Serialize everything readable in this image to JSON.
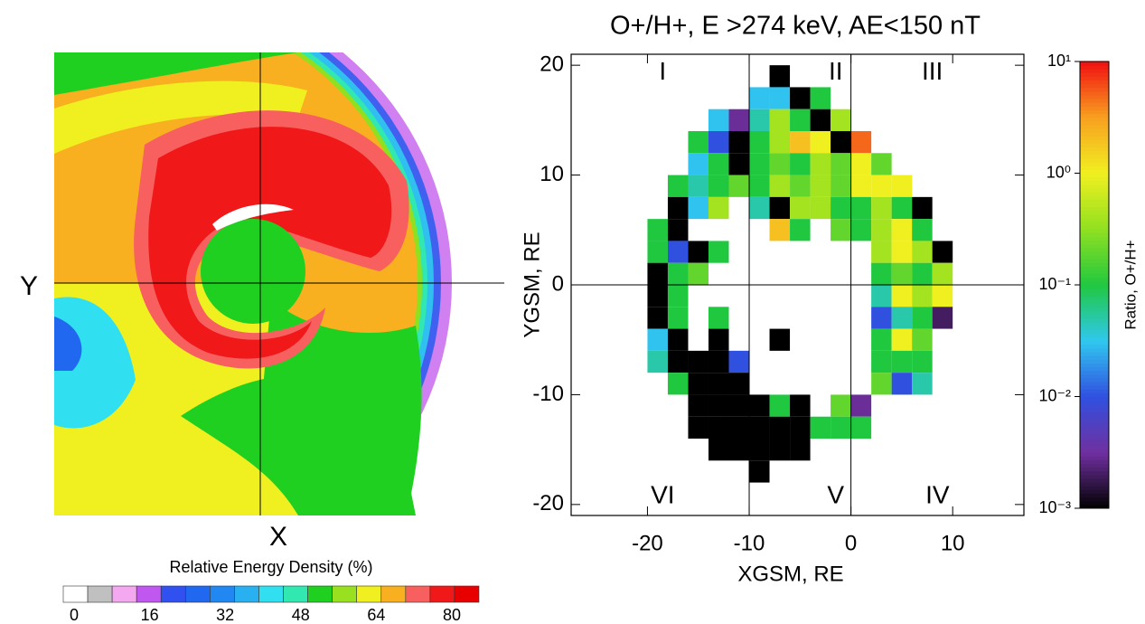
{
  "chart_data": [
    {
      "type": "contour-map",
      "x_label": "X",
      "y_label": "Y",
      "colorbar": {
        "title": "Relative Energy Density (%)",
        "colors": [
          "#ffffff",
          "#c0c0c0",
          "#f4a8f0",
          "#c058f0",
          "#3050f0",
          "#2068f0",
          "#2088f0",
          "#28b0f0",
          "#30e0f0",
          "#30e8b0",
          "#20d020",
          "#98e020",
          "#f0f020",
          "#f8b020",
          "#f86060",
          "#f01818",
          "#e80000"
        ],
        "ticks": [
          0,
          16,
          32,
          48,
          64,
          80
        ]
      }
    },
    {
      "type": "heatmap",
      "title": "O+/H+, E >274 keV, AE<150 nT",
      "x_label": "XGSM, RE",
      "y_label": "YGSM, RE",
      "xlim": [
        -27.5,
        17
      ],
      "ylim": [
        -21,
        21
      ],
      "xticks": [
        -20,
        -10,
        0,
        10
      ],
      "yticks": [
        -20,
        -10,
        0,
        10,
        20
      ],
      "x_edges": [
        -20,
        -18,
        -16,
        -14,
        -12,
        -10,
        -8,
        -6,
        -4,
        -2,
        0,
        2,
        4,
        6,
        8,
        10
      ],
      "y_edges": [
        20,
        18,
        16,
        14,
        12,
        10,
        8,
        6,
        4,
        2,
        0,
        -2,
        -4,
        -6,
        -8,
        -10,
        -12,
        -14,
        -16,
        -18
      ],
      "values": [
        [
          null,
          null,
          null,
          null,
          null,
          null,
          0.001,
          null,
          null,
          null,
          null,
          null,
          null,
          null,
          null
        ],
        [
          null,
          null,
          null,
          null,
          null,
          0.03,
          0.03,
          0.001,
          0.1,
          null,
          null,
          null,
          null,
          null,
          null
        ],
        [
          null,
          null,
          null,
          0.03,
          0.003,
          0.05,
          0.4,
          0.1,
          0.001,
          0.4,
          null,
          null,
          null,
          null,
          null
        ],
        [
          null,
          null,
          0.1,
          0.01,
          0.001,
          0.1,
          0.4,
          2,
          1,
          0.001,
          5,
          null,
          null,
          null,
          null
        ],
        [
          null,
          null,
          0.03,
          0.1,
          0.001,
          0.1,
          0.2,
          0.1,
          0.4,
          0.2,
          1,
          0.2,
          null,
          null,
          null
        ],
        [
          null,
          0.1,
          0.05,
          0.1,
          0.2,
          0.1,
          0.4,
          0.2,
          0.4,
          0.2,
          1,
          1,
          1,
          null,
          null
        ],
        [
          null,
          0.001,
          0.03,
          0.4,
          null,
          0.05,
          0.001,
          0.4,
          0.4,
          0.1,
          0.1,
          0.4,
          0.1,
          0.001,
          null
        ],
        [
          0.1,
          0.001,
          null,
          null,
          null,
          null,
          2,
          0.1,
          null,
          0.2,
          0.1,
          0.4,
          1,
          0.1,
          null
        ],
        [
          0.1,
          0.01,
          0.001,
          0.1,
          null,
          null,
          null,
          null,
          null,
          null,
          null,
          0.4,
          1,
          0.4,
          0.001
        ],
        [
          0.001,
          0.1,
          0.2,
          null,
          null,
          null,
          null,
          null,
          null,
          null,
          null,
          0.1,
          0.2,
          0.1,
          0.4
        ],
        [
          0.001,
          0.1,
          null,
          null,
          null,
          null,
          null,
          null,
          null,
          null,
          null,
          0.05,
          1,
          0.4,
          1
        ],
        [
          0.001,
          0.1,
          null,
          0.1,
          null,
          null,
          null,
          null,
          null,
          null,
          null,
          0.01,
          0.05,
          0.1,
          0.002
        ],
        [
          0.03,
          0.001,
          null,
          0.001,
          null,
          null,
          0.001,
          null,
          null,
          null,
          null,
          0.1,
          1,
          0.2,
          null
        ],
        [
          0.05,
          0.001,
          0.001,
          0.001,
          0.01,
          null,
          null,
          null,
          null,
          null,
          null,
          0.1,
          0.1,
          0.1,
          null
        ],
        [
          null,
          0.1,
          0.001,
          0.001,
          0.001,
          null,
          null,
          null,
          null,
          null,
          null,
          0.2,
          0.01,
          0.05,
          null
        ],
        [
          null,
          null,
          0.001,
          0.001,
          0.001,
          0.001,
          0.1,
          0.001,
          null,
          0.2,
          0.003,
          null,
          null,
          null,
          null
        ],
        [
          null,
          null,
          0.001,
          0.001,
          0.001,
          0.001,
          0.001,
          0.001,
          0.1,
          0.1,
          0.1,
          null,
          null,
          null,
          null
        ],
        [
          null,
          null,
          null,
          0.001,
          0.001,
          0.001,
          0.001,
          0.001,
          null,
          null,
          null,
          null,
          null,
          null,
          null
        ],
        [
          null,
          null,
          null,
          null,
          null,
          0.001,
          null,
          null,
          null,
          null,
          null,
          null,
          null,
          null,
          null
        ]
      ],
      "zlim": [
        0.001,
        10
      ],
      "colormap": [
        "#000000",
        "#7030a0",
        "#3050e0",
        "#30c8f0",
        "#20c840",
        "#90e020",
        "#f0f020",
        "#f8a020",
        "#f01010"
      ],
      "colorbar_label": "Ratio, O+/H+",
      "colorbar_ticks": [
        {
          "value": 0.001,
          "label": "10⁻³"
        },
        {
          "value": 0.01,
          "label": "10⁻²"
        },
        {
          "value": 0.1,
          "label": "10⁻¹"
        },
        {
          "value": 1,
          "label": "10⁰"
        },
        {
          "value": 10,
          "label": "10¹"
        }
      ],
      "annotations": [
        "I",
        "II",
        "III",
        "IV",
        "V",
        "VI"
      ]
    }
  ]
}
